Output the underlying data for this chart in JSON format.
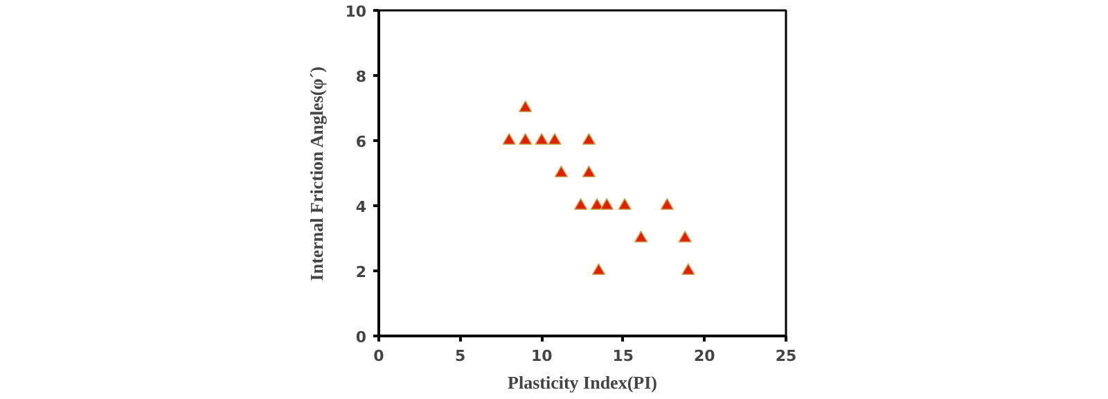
{
  "chart_data": {
    "type": "scatter",
    "xlabel": "Plasticity Index(PI)",
    "ylabel": "Internal Friction Angles(φ´)",
    "x": [
      9.0,
      8.0,
      9.0,
      10.0,
      10.8,
      12.9,
      11.2,
      12.9,
      12.4,
      13.4,
      14.0,
      15.1,
      17.7,
      16.1,
      18.8,
      13.5,
      19.0
    ],
    "series": [
      {
        "color": "#e02000",
        "values": [
          7,
          6,
          6,
          6,
          6,
          6,
          5,
          5,
          4,
          4,
          4,
          4,
          4,
          3,
          3,
          2,
          2
        ]
      }
    ],
    "marker": "triangle",
    "xlim": [
      0,
      25
    ],
    "ylim": [
      0,
      10
    ],
    "xticks": [
      0,
      5,
      10,
      15,
      20,
      25
    ],
    "yticks": [
      0,
      2,
      4,
      6,
      8,
      10
    ]
  }
}
